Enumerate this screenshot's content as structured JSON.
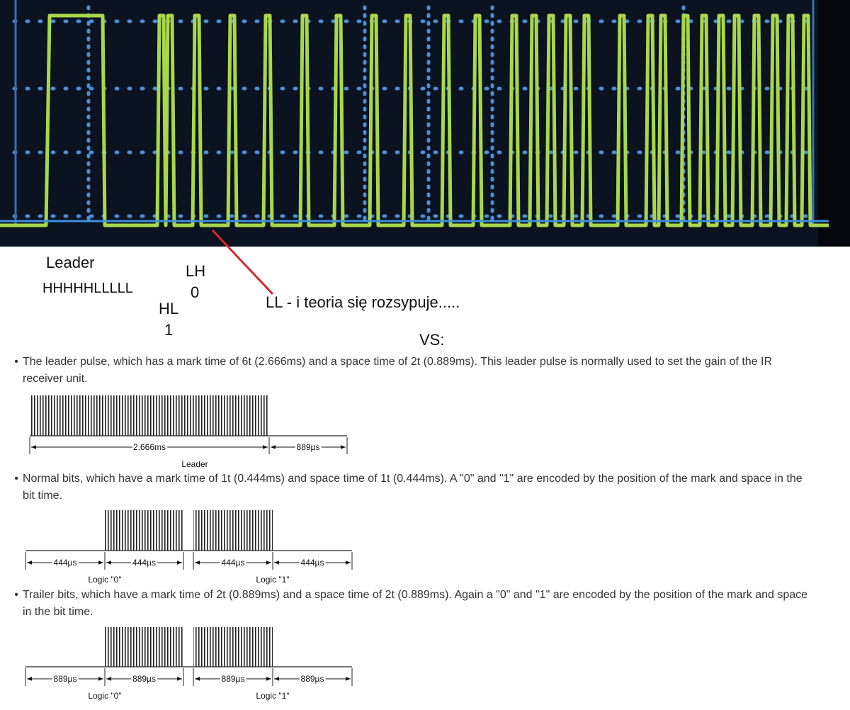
{
  "annotations": {
    "leader": "Leader",
    "leader_bits": "HHHHHLLLLL",
    "lh": "LH",
    "lh_bit": "0",
    "hl": "HL",
    "hl_bit": "1",
    "comment": "LL - i teoria się rozsypuje.....",
    "vs": "VS:"
  },
  "items": [
    {
      "text": "The leader pulse, which has a mark time of 6t (2.666ms) and a space time of 2t (0.889ms). This leader pulse is normally used to set the gain of the IR receiver unit.",
      "diagram": {
        "labels": [
          "2.666ms",
          "889µs"
        ],
        "captions": [
          "Leader"
        ]
      }
    },
    {
      "text": "Normal bits, which have a mark time of 1t (0.444ms) and space time of 1t (0.444ms). A \"0\" and \"1\" are encoded by the position of the mark and space in the bit time.",
      "diagram": {
        "labels": [
          "444µs",
          "444µs",
          "444µs",
          "444µs"
        ],
        "captions": [
          "Logic \"0\"",
          "Logic \"1\""
        ]
      }
    },
    {
      "text": "Trailer bits, which have a mark time of 2t (0.889ms) and a space time of 2t (0.889ms). Again a \"0\" and \"1\" are encoded by the position of the mark and space in the bit time.",
      "diagram": {
        "labels": [
          "889µs",
          "889µs",
          "889µs",
          "889µs"
        ],
        "captions": [
          "Logic \"0\"",
          "Logic \"1\""
        ]
      }
    }
  ]
}
